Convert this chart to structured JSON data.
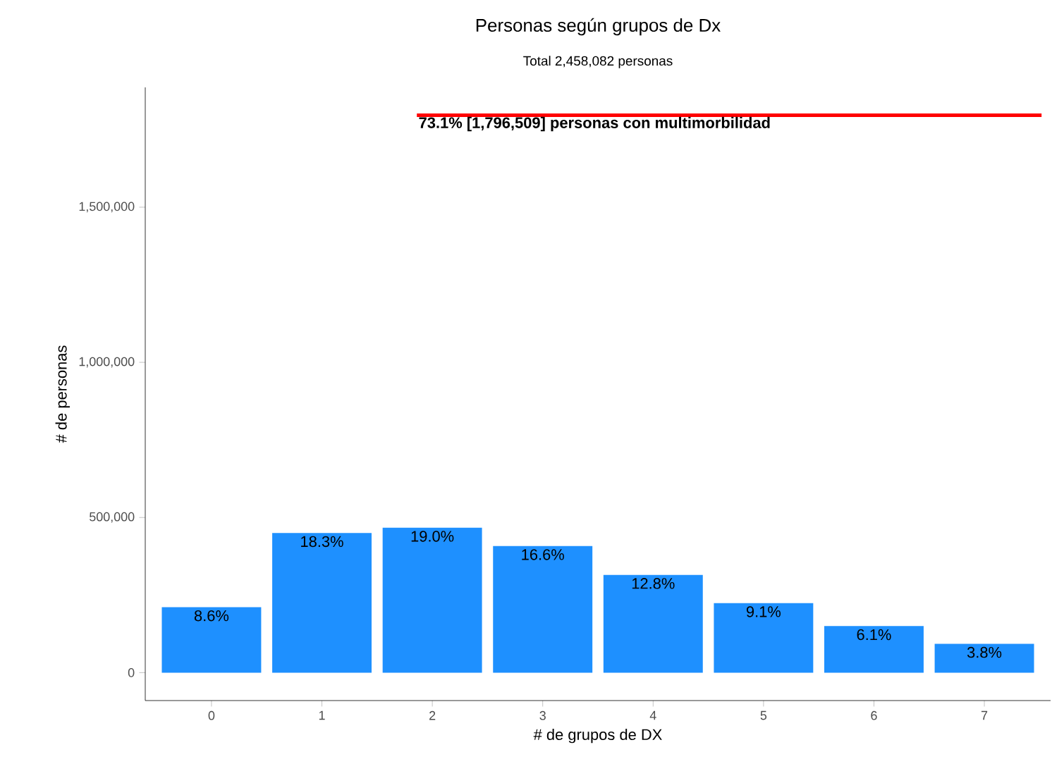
{
  "chart_data": {
    "type": "bar",
    "title": "Personas según grupos de Dx",
    "subtitle": "Total 2,458,082 personas",
    "xlabel": "# de grupos de DX",
    "ylabel": "# de personas",
    "categories": [
      "0",
      "1",
      "2",
      "3",
      "4",
      "5",
      "6",
      "7"
    ],
    "values": [
      211000,
      450000,
      467000,
      408000,
      315000,
      224000,
      150000,
      93000
    ],
    "annotations": [
      {
        "text": "8.6%",
        "x": "0",
        "y": 211000
      },
      {
        "text": "18.3%",
        "x": "1",
        "y": 450000
      },
      {
        "text": "19.0%",
        "x": "2",
        "y": 467000
      },
      {
        "text": "16.6%",
        "x": "3",
        "y": 408000
      },
      {
        "text": "12.8%",
        "x": "4",
        "y": 315000
      },
      {
        "text": "9.1%",
        "x": "5",
        "y": 224000
      },
      {
        "text": "6.1%",
        "x": "6",
        "y": 150000
      },
      {
        "text": "3.8%",
        "x": "7",
        "y": 93000
      }
    ],
    "color": "#1e90ff",
    "ylim": [
      -90000,
      1886000
    ],
    "yticks": [
      {
        "value": 0,
        "label": "0"
      },
      {
        "value": 500000,
        "label": "500,000"
      },
      {
        "value": 1000000,
        "label": "1,000,000"
      },
      {
        "value": 1500000,
        "label": "1,500,000"
      }
    ],
    "ref_lines": [
      {
        "axis": "y",
        "value": 1796509,
        "label": "73.1%  [1,796,509] personas con multimorbilidad",
        "color": "#ff0000"
      }
    ],
    "grid": false
  }
}
